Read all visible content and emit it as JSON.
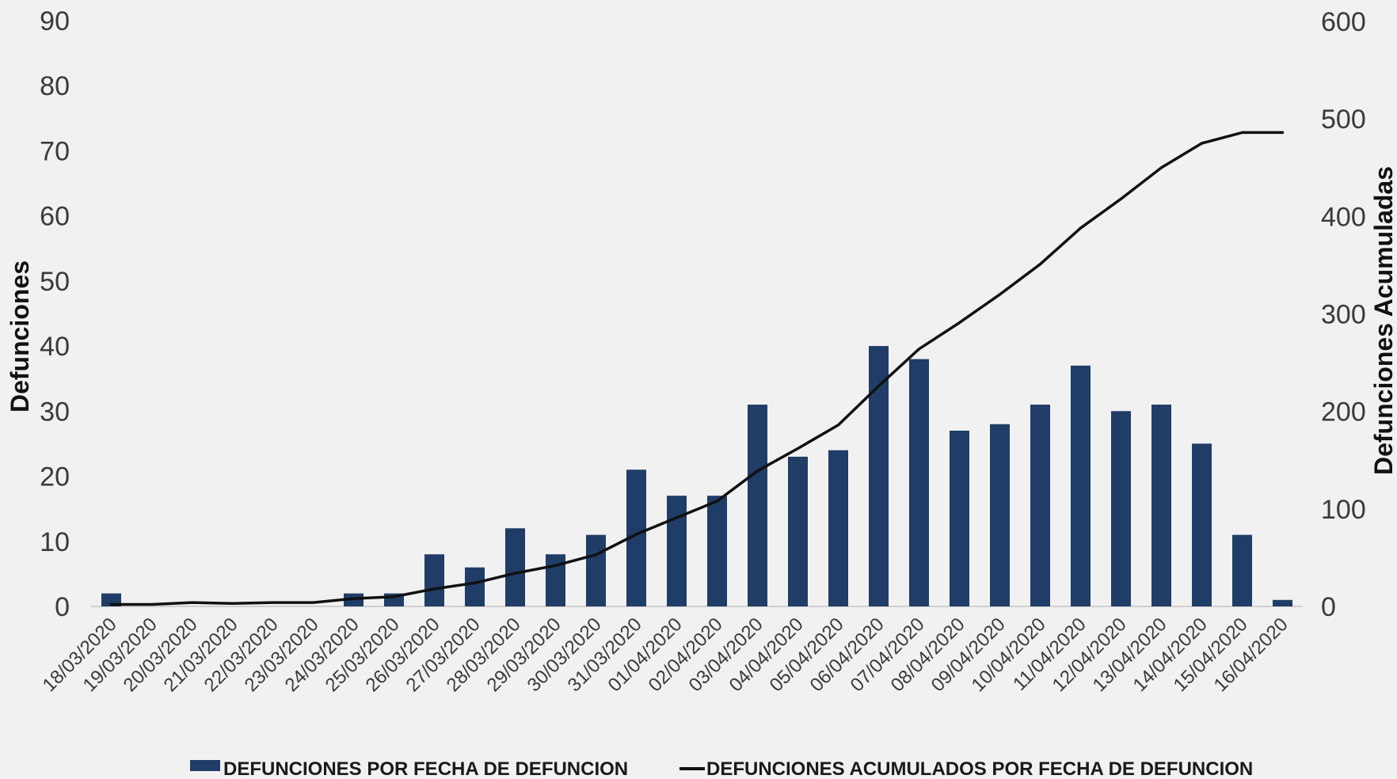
{
  "chart_data": {
    "type": "bar",
    "categories": [
      "18/03/2020",
      "19/03/2020",
      "20/03/2020",
      "21/03/2020",
      "22/03/2020",
      "23/03/2020",
      "24/03/2020",
      "25/03/2020",
      "26/03/2020",
      "27/03/2020",
      "28/03/2020",
      "29/03/2020",
      "30/03/2020",
      "31/03/2020",
      "01/04/2020",
      "02/04/2020",
      "03/04/2020",
      "04/04/2020",
      "05/04/2020",
      "06/04/2020",
      "07/04/2020",
      "08/04/2020",
      "09/04/2020",
      "10/04/2020",
      "11/04/2020",
      "12/04/2020",
      "13/04/2020",
      "14/04/2020",
      "15/04/2020",
      "16/04/2020"
    ],
    "series": [
      {
        "name": "DEFUNCIONES POR FECHA DE DEFUNCION",
        "type": "bar",
        "axis": "left",
        "color": "#1f3d66",
        "values": [
          2,
          0,
          0,
          0,
          0,
          0,
          2,
          2,
          8,
          6,
          12,
          8,
          11,
          21,
          17,
          17,
          31,
          23,
          24,
          40,
          38,
          27,
          28,
          31,
          37,
          30,
          31,
          25,
          11,
          1
        ]
      },
      {
        "name": "DEFUNCIONES ACUMULADOS POR FECHA DE DEFUNCION",
        "type": "line",
        "axis": "right",
        "color": "#111111",
        "values": [
          2,
          2,
          4,
          3,
          4,
          4,
          8,
          10,
          18,
          24,
          34,
          42,
          53,
          74,
          91,
          108,
          139,
          162,
          186,
          226,
          264,
          291,
          320,
          351,
          388,
          418,
          450,
          475,
          486,
          486
        ]
      }
    ],
    "y_left": {
      "label": "Defunciones",
      "ticks": [
        0,
        10,
        20,
        30,
        40,
        50,
        60,
        70,
        80,
        90
      ],
      "range": [
        0,
        90
      ]
    },
    "y_right": {
      "label": "Defunciones Acumuladas",
      "ticks": [
        0,
        100,
        200,
        300,
        400,
        500,
        600
      ],
      "range": [
        0,
        600
      ]
    },
    "legend": {
      "position": "bottom"
    }
  }
}
